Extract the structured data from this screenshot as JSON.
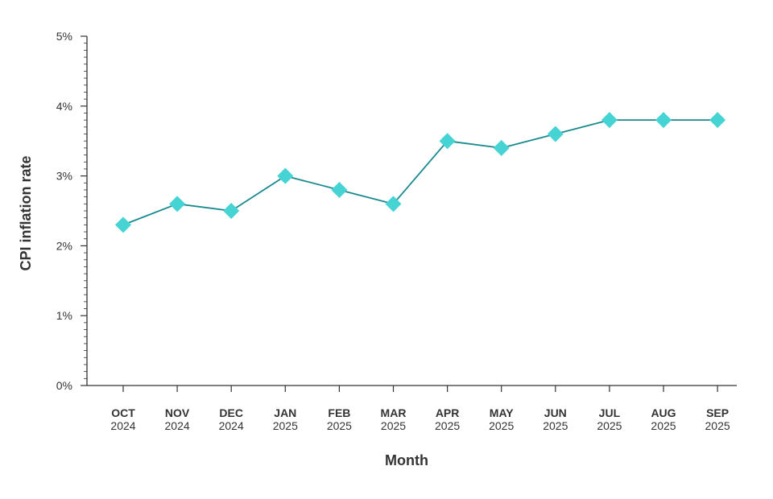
{
  "chart_data": {
    "type": "line",
    "xlabel": "Month",
    "ylabel": "CPI inflation rate",
    "ylim": [
      0,
      5
    ],
    "y_ticks": [
      "0%",
      "1%",
      "2%",
      "3%",
      "4%",
      "5%"
    ],
    "y_tick_values": [
      0,
      1,
      2,
      3,
      4,
      5
    ],
    "grid": false,
    "categories": [
      {
        "month": "OCT",
        "year": "2024"
      },
      {
        "month": "NOV",
        "year": "2024"
      },
      {
        "month": "DEC",
        "year": "2024"
      },
      {
        "month": "JAN",
        "year": "2025"
      },
      {
        "month": "FEB",
        "year": "2025"
      },
      {
        "month": "MAR",
        "year": "2025"
      },
      {
        "month": "APR",
        "year": "2025"
      },
      {
        "month": "MAY",
        "year": "2025"
      },
      {
        "month": "JUN",
        "year": "2025"
      },
      {
        "month": "JUL",
        "year": "2025"
      },
      {
        "month": "AUG",
        "year": "2025"
      },
      {
        "month": "SEP",
        "year": "2025"
      }
    ],
    "series": [
      {
        "values": [
          2.3,
          2.6,
          2.5,
          3.0,
          2.8,
          2.6,
          3.5,
          3.4,
          3.6,
          3.8,
          3.8,
          3.8
        ]
      }
    ],
    "colors": {
      "line": "#1a8a8f",
      "marker": "#45d3d3",
      "axis": "#333333"
    }
  }
}
